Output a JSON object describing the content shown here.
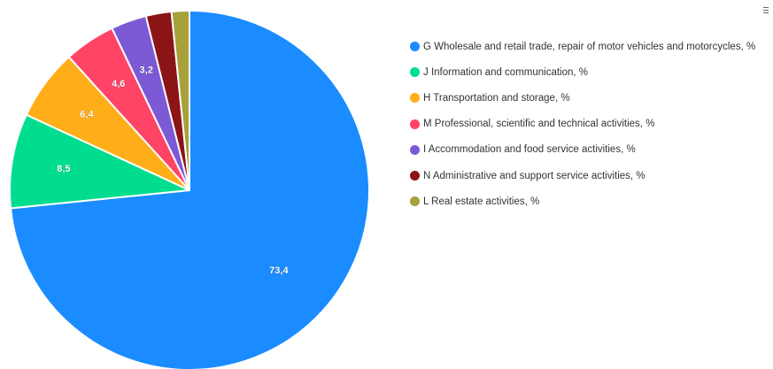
{
  "chart_data": {
    "type": "pie",
    "title": "",
    "series": [
      {
        "name": "G Wholesale and retail trade, repair of motor vehicles and motorcycles, %",
        "value": 73.4,
        "label": "73,4",
        "color": "#1a8cff"
      },
      {
        "name": "J Information and communication, %",
        "value": 8.5,
        "label": "8,5",
        "color": "#00dd8f"
      },
      {
        "name": "H Transportation and storage, %",
        "value": 6.4,
        "label": "6,4",
        "color": "#ffae1a"
      },
      {
        "name": "M Professional, scientific and technical activities, %",
        "value": 4.6,
        "label": "4,6",
        "color": "#ff4466"
      },
      {
        "name": "I Accommodation and food service activities, %",
        "value": 3.2,
        "label": "3,2",
        "color": "#7c5ad6"
      },
      {
        "name": "N Administrative and support service activities, %",
        "value": 2.3,
        "label": "",
        "color": "#8b1416"
      },
      {
        "name": "L Real estate activities, %",
        "value": 1.6,
        "label": "",
        "color": "#a6a13a"
      }
    ],
    "legend_position": "right"
  },
  "toolbar": {
    "menu_icon": "hamburger-menu-icon"
  }
}
